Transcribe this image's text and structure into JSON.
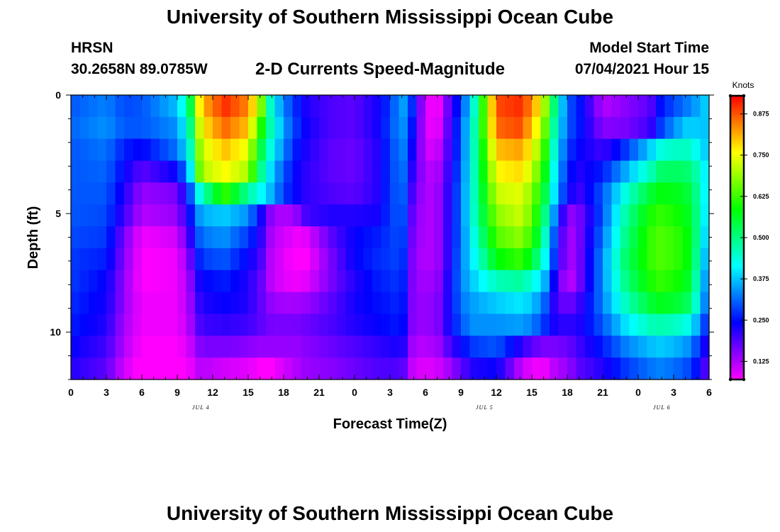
{
  "header": {
    "title": "University of Southern Mississippi Ocean Cube",
    "station": "HRSN",
    "coordinates": "30.2658N  89.0785W",
    "model_start_label": "Model Start Time",
    "model_start_value": "07/04/2021 Hour 15"
  },
  "footer": {
    "title": "University of Southern Mississippi Ocean Cube"
  },
  "chart_data": {
    "type": "heatmap",
    "title": "2-D Currents Speed-Magnitude",
    "xlabel": "Forecast Time(Z)",
    "ylabel": "Depth (ft)",
    "x_tick_labels": [
      "0",
      "3",
      "6",
      "9",
      "12",
      "15",
      "18",
      "21",
      "0",
      "3",
      "6",
      "9",
      "12",
      "15",
      "18",
      "21",
      "0",
      "3",
      "6"
    ],
    "date_labels": [
      {
        "text": "JUL 4",
        "hour": 11
      },
      {
        "text": "JUL 5",
        "hour": 35
      },
      {
        "text": "JUL 6",
        "hour": 50
      }
    ],
    "x_range_hours": [
      0,
      54
    ],
    "y_tick_labels": [
      "0",
      "5",
      "10"
    ],
    "y_range_ft": [
      0,
      12
    ],
    "y_reversed": true,
    "colorbar": {
      "unit": "Knots",
      "range": [
        0.07,
        0.93
      ],
      "tick_labels": [
        "0.875",
        "0.750",
        "0.625",
        "0.500",
        "0.375",
        "0.250",
        "0.125"
      ],
      "tick_values": [
        0.875,
        0.75,
        0.625,
        0.5,
        0.375,
        0.25,
        0.125
      ]
    },
    "depth_levels_ft": [
      0,
      1,
      2,
      3,
      4,
      5,
      6,
      7,
      8,
      9,
      10,
      11,
      12
    ],
    "hour_knots": [
      0,
      3,
      4.5,
      6,
      9,
      10,
      11,
      13,
      15,
      16,
      17,
      18,
      19,
      20,
      22,
      24,
      26,
      27,
      28,
      29,
      30,
      31,
      32,
      33,
      34,
      36,
      38,
      39,
      40,
      41,
      42,
      43,
      45,
      47,
      49,
      50,
      52,
      53.5,
      54
    ],
    "speed_knots": [
      [
        0.3,
        0.33,
        0.29,
        0.3,
        0.37,
        0.5,
        0.8,
        0.9,
        0.84,
        0.7,
        0.42,
        0.33,
        0.27,
        0.22,
        0.19,
        0.18,
        0.23,
        0.28,
        0.36,
        0.26,
        0.09,
        0.07,
        0.18,
        0.28,
        0.42,
        0.88,
        0.9,
        0.84,
        0.72,
        0.48,
        0.3,
        0.26,
        0.12,
        0.15,
        0.18,
        0.26,
        0.32,
        0.37,
        0.4
      ],
      [
        0.31,
        0.34,
        0.3,
        0.3,
        0.34,
        0.46,
        0.76,
        0.86,
        0.8,
        0.62,
        0.45,
        0.35,
        0.28,
        0.23,
        0.19,
        0.18,
        0.23,
        0.29,
        0.35,
        0.24,
        0.09,
        0.08,
        0.19,
        0.3,
        0.44,
        0.86,
        0.88,
        0.8,
        0.68,
        0.45,
        0.3,
        0.26,
        0.15,
        0.16,
        0.2,
        0.29,
        0.38,
        0.38,
        0.36
      ],
      [
        0.3,
        0.32,
        0.26,
        0.24,
        0.32,
        0.42,
        0.72,
        0.8,
        0.74,
        0.55,
        0.42,
        0.33,
        0.26,
        0.22,
        0.18,
        0.17,
        0.22,
        0.28,
        0.34,
        0.22,
        0.1,
        0.1,
        0.2,
        0.3,
        0.44,
        0.8,
        0.82,
        0.76,
        0.64,
        0.42,
        0.28,
        0.24,
        0.2,
        0.28,
        0.38,
        0.44,
        0.46,
        0.4,
        0.34
      ],
      [
        0.3,
        0.31,
        0.24,
        0.18,
        0.24,
        0.36,
        0.7,
        0.76,
        0.7,
        0.5,
        0.38,
        0.3,
        0.24,
        0.21,
        0.18,
        0.17,
        0.22,
        0.28,
        0.33,
        0.2,
        0.12,
        0.12,
        0.21,
        0.31,
        0.44,
        0.76,
        0.78,
        0.72,
        0.6,
        0.4,
        0.26,
        0.22,
        0.26,
        0.36,
        0.46,
        0.52,
        0.52,
        0.44,
        0.32
      ],
      [
        0.3,
        0.3,
        0.22,
        0.14,
        0.16,
        0.28,
        0.45,
        0.62,
        0.48,
        0.42,
        0.36,
        0.28,
        0.24,
        0.21,
        0.19,
        0.18,
        0.22,
        0.28,
        0.32,
        0.18,
        0.12,
        0.13,
        0.22,
        0.32,
        0.44,
        0.72,
        0.74,
        0.68,
        0.56,
        0.38,
        0.24,
        0.2,
        0.3,
        0.44,
        0.55,
        0.58,
        0.56,
        0.45,
        0.3
      ],
      [
        0.3,
        0.29,
        0.2,
        0.12,
        0.14,
        0.24,
        0.36,
        0.38,
        0.34,
        0.24,
        0.14,
        0.12,
        0.14,
        0.2,
        0.22,
        0.22,
        0.23,
        0.28,
        0.31,
        0.16,
        0.12,
        0.13,
        0.22,
        0.32,
        0.44,
        0.68,
        0.72,
        0.66,
        0.52,
        0.32,
        0.14,
        0.16,
        0.3,
        0.48,
        0.6,
        0.62,
        0.58,
        0.45,
        0.28
      ],
      [
        0.29,
        0.28,
        0.16,
        0.08,
        0.1,
        0.2,
        0.32,
        0.34,
        0.28,
        0.22,
        0.12,
        0.1,
        0.08,
        0.09,
        0.18,
        0.24,
        0.26,
        0.28,
        0.3,
        0.15,
        0.12,
        0.13,
        0.22,
        0.32,
        0.42,
        0.64,
        0.68,
        0.62,
        0.48,
        0.28,
        0.12,
        0.16,
        0.32,
        0.5,
        0.62,
        0.64,
        0.6,
        0.44,
        0.26
      ],
      [
        0.28,
        0.26,
        0.15,
        0.07,
        0.08,
        0.16,
        0.28,
        0.3,
        0.24,
        0.2,
        0.11,
        0.09,
        0.06,
        0.07,
        0.16,
        0.24,
        0.27,
        0.28,
        0.29,
        0.14,
        0.12,
        0.13,
        0.22,
        0.33,
        0.4,
        0.58,
        0.62,
        0.56,
        0.44,
        0.26,
        0.12,
        0.16,
        0.34,
        0.52,
        0.62,
        0.64,
        0.6,
        0.42,
        0.24
      ],
      [
        0.28,
        0.24,
        0.14,
        0.07,
        0.08,
        0.14,
        0.24,
        0.26,
        0.22,
        0.18,
        0.11,
        0.09,
        0.08,
        0.09,
        0.16,
        0.22,
        0.26,
        0.27,
        0.28,
        0.14,
        0.13,
        0.14,
        0.23,
        0.33,
        0.38,
        0.46,
        0.48,
        0.44,
        0.38,
        0.22,
        0.1,
        0.16,
        0.34,
        0.5,
        0.6,
        0.62,
        0.58,
        0.4,
        0.22
      ],
      [
        0.27,
        0.23,
        0.14,
        0.08,
        0.08,
        0.13,
        0.22,
        0.24,
        0.22,
        0.18,
        0.14,
        0.13,
        0.13,
        0.14,
        0.18,
        0.23,
        0.25,
        0.26,
        0.27,
        0.14,
        0.14,
        0.15,
        0.23,
        0.32,
        0.35,
        0.38,
        0.4,
        0.38,
        0.32,
        0.2,
        0.16,
        0.2,
        0.33,
        0.46,
        0.55,
        0.57,
        0.54,
        0.38,
        0.2
      ],
      [
        0.26,
        0.22,
        0.13,
        0.08,
        0.08,
        0.12,
        0.2,
        0.21,
        0.2,
        0.18,
        0.16,
        0.16,
        0.16,
        0.17,
        0.19,
        0.22,
        0.24,
        0.25,
        0.26,
        0.14,
        0.14,
        0.15,
        0.23,
        0.3,
        0.34,
        0.34,
        0.35,
        0.33,
        0.28,
        0.22,
        0.21,
        0.22,
        0.3,
        0.4,
        0.46,
        0.47,
        0.44,
        0.32,
        0.18
      ],
      [
        0.24,
        0.2,
        0.12,
        0.07,
        0.07,
        0.1,
        0.16,
        0.16,
        0.15,
        0.14,
        0.14,
        0.14,
        0.14,
        0.15,
        0.17,
        0.19,
        0.21,
        0.22,
        0.23,
        0.12,
        0.12,
        0.13,
        0.19,
        0.24,
        0.28,
        0.3,
        0.22,
        0.18,
        0.16,
        0.16,
        0.17,
        0.2,
        0.26,
        0.33,
        0.37,
        0.38,
        0.35,
        0.26,
        0.14
      ],
      [
        0.22,
        0.18,
        0.1,
        0.06,
        0.05,
        0.08,
        0.12,
        0.1,
        0.09,
        0.07,
        0.07,
        0.1,
        0.12,
        0.14,
        0.15,
        0.17,
        0.19,
        0.19,
        0.19,
        0.1,
        0.09,
        0.1,
        0.13,
        0.18,
        0.22,
        0.24,
        0.12,
        0.08,
        0.08,
        0.12,
        0.14,
        0.18,
        0.22,
        0.28,
        0.32,
        0.33,
        0.3,
        0.22,
        0.12
      ]
    ]
  }
}
